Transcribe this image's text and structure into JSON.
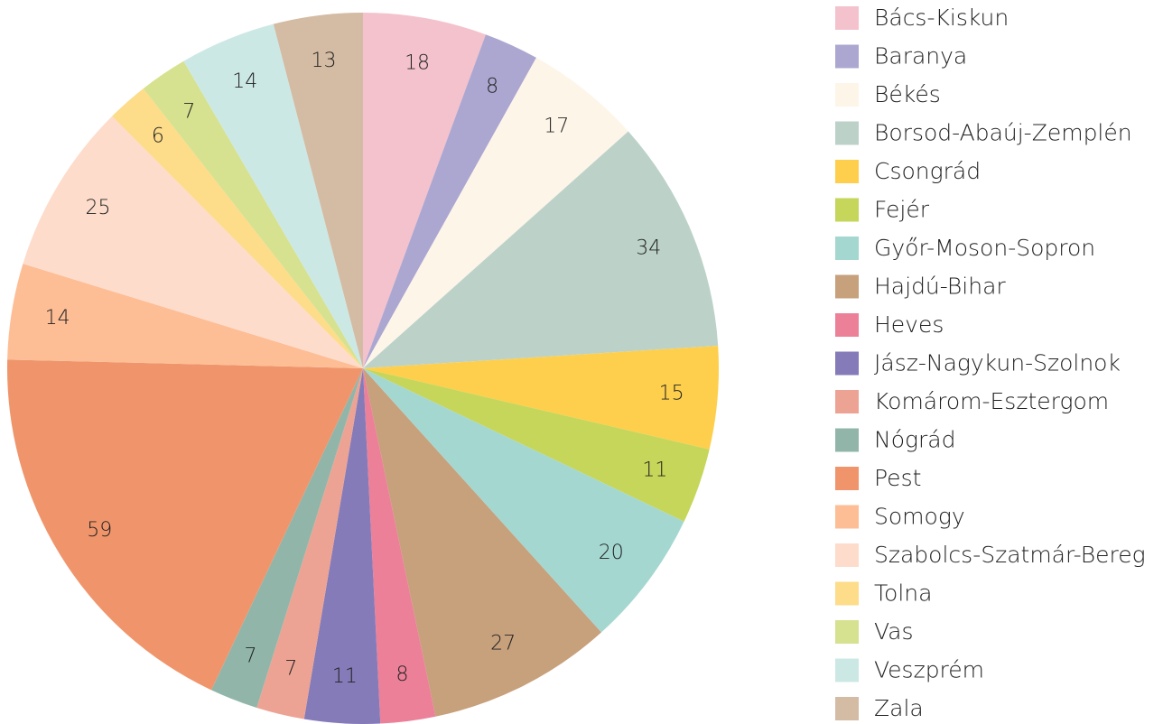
{
  "chart_data": {
    "type": "pie",
    "categories": [
      "Bács-Kiskun",
      "Baranya",
      "Békés",
      "Borsod-Abaúj-Zemplén",
      "Csongrád",
      "Fejér",
      "Győr-Moson-Sopron",
      "Hajdú-Bihar",
      "Heves",
      "Jász-Nagykun-Szolnok",
      "Komárom-Esztergom",
      "Nógrád",
      "Pest",
      "Somogy",
      "Szabolcs-Szatmár-Bereg",
      "Tolna",
      "Vas",
      "Veszprém",
      "Zala"
    ],
    "values": [
      18,
      8,
      17,
      34,
      15,
      11,
      20,
      27,
      8,
      11,
      7,
      7,
      59,
      14,
      25,
      6,
      7,
      14,
      13
    ],
    "colors": [
      "#f4c2cc",
      "#aca7d1",
      "#fdf5e8",
      "#bcd2c9",
      "#fecf4c",
      "#c6d65a",
      "#a5d7d1",
      "#c7a07c",
      "#ec8099",
      "#857bb8",
      "#eda393",
      "#91b6a9",
      "#f0956b",
      "#fdbe96",
      "#fedccb",
      "#fddc8a",
      "#d6e28f",
      "#cce8e5",
      "#d4bba3"
    ],
    "legend": "right"
  }
}
